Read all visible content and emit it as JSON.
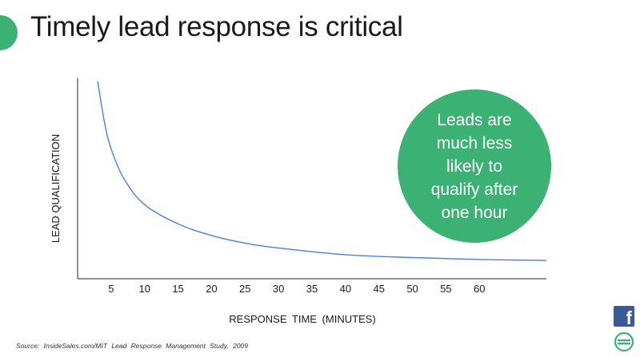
{
  "slide": {
    "title": "Timely lead response is critical",
    "accent_color": "#3bb273",
    "callout": "Leads are much less likely to qualify after one hour",
    "source": "Source: InsideSales.com/MIT Lead Response Management Study, 2009",
    "icons": {
      "facebook": "facebook-icon",
      "brand": "brand-logo-icon"
    }
  },
  "chart_data": {
    "type": "line",
    "title": "",
    "xlabel": "RESPONSE TIME (MINUTES)",
    "ylabel": "LEAD QUALIFICATION",
    "x_ticks": [
      5,
      10,
      15,
      20,
      25,
      30,
      35,
      40,
      45,
      50,
      55,
      60
    ],
    "xlim": [
      0,
      70
    ],
    "y_ticks_visible": false,
    "line_color": "#4a7fe0",
    "grid": false,
    "series": [
      {
        "x": [
          3,
          4,
          5,
          7,
          10,
          15,
          20,
          25,
          30,
          40,
          50,
          60,
          70
        ],
        "y": [
          100,
          79,
          65,
          49,
          36,
          26,
          20,
          16,
          13.5,
          10,
          8.5,
          7.5,
          7
        ]
      }
    ]
  }
}
